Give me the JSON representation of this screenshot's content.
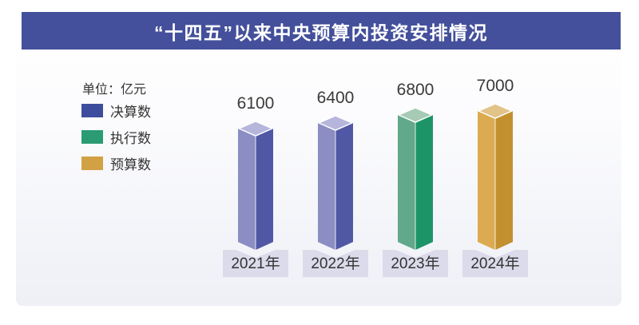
{
  "header": {
    "title": "“十四五”以来中央预算内投资安排情况",
    "bg_color": "#44509b",
    "text_color": "#ffffff"
  },
  "legend": {
    "unit_label": "单位：亿元",
    "items": [
      {
        "label": "决算数",
        "color": "#3e4c9d"
      },
      {
        "label": "执行数",
        "color": "#2b9b74"
      },
      {
        "label": "预算数",
        "color": "#d2a144"
      }
    ]
  },
  "chart_data": {
    "type": "bar",
    "style": "3d-column",
    "title": "“十四五”以来中央预算内投资安排情况",
    "unit": "亿元",
    "categories": [
      "2021年",
      "2022年",
      "2023年",
      "2024年"
    ],
    "values": [
      6100,
      6400,
      6800,
      7000
    ],
    "series_of_category": [
      "决算数",
      "决算数",
      "执行数",
      "预算数"
    ],
    "legend_entries": [
      "决算数",
      "执行数",
      "预算数"
    ],
    "grid": false,
    "legend_position": "left",
    "palette": {
      "决算数": {
        "left": "#8b8dc3",
        "right": "#5058a5",
        "top": "#b6b5dc"
      },
      "执行数": {
        "left": "#61a98a",
        "right": "#1d9468",
        "top": "#a6cab4"
      },
      "预算数": {
        "left": "#dcab51",
        "right": "#c3902f",
        "top": "#e2c388"
      }
    },
    "category_plate_color": "#dcdbeb",
    "value_label_color": "#3a3a3a"
  }
}
